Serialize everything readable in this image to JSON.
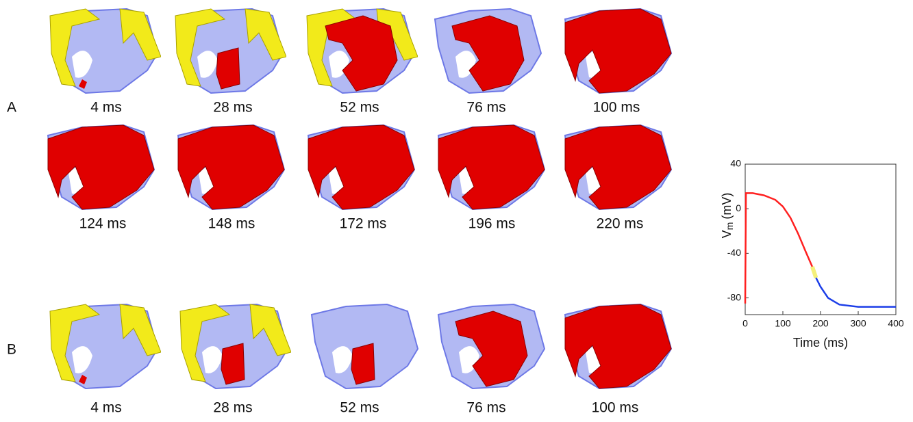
{
  "panel_a": {
    "label": "A",
    "rows": [
      [
        "4 ms",
        "28 ms",
        "52 ms",
        "76 ms",
        "100 ms"
      ],
      [
        "124 ms",
        "148 ms",
        "172 ms",
        "196 ms",
        "220 ms"
      ]
    ]
  },
  "panel_b": {
    "label": "B",
    "times": [
      "4 ms",
      "28 ms",
      "52 ms",
      "76 ms",
      "100 ms"
    ]
  },
  "chart_data": {
    "type": "line",
    "ylabel": {
      "symbol": "V",
      "subscript": "m",
      "unit": "(mV)"
    },
    "xlabel": "Time (ms)",
    "xlim": [
      0,
      400
    ],
    "xticks": [
      0,
      100,
      200,
      300,
      400
    ],
    "ylim": [
      -95,
      40
    ],
    "yticks": [
      40,
      0,
      -40,
      -80
    ],
    "series": [
      {
        "color": "#ff2020",
        "x": [
          0,
          2,
          20,
          50,
          80,
          100,
          120,
          140,
          160,
          178
        ],
        "values": [
          -85,
          14,
          14,
          12,
          8,
          2,
          -8,
          -22,
          -38,
          -52
        ]
      },
      {
        "color": "#f4f07a",
        "x": [
          178,
          183,
          188
        ],
        "values": [
          -52,
          -57,
          -62
        ]
      },
      {
        "color": "#1c3ee8",
        "x": [
          188,
          200,
          220,
          250,
          300,
          400
        ],
        "values": [
          -62,
          -70,
          -80,
          -86,
          -88,
          -88
        ]
      }
    ]
  }
}
